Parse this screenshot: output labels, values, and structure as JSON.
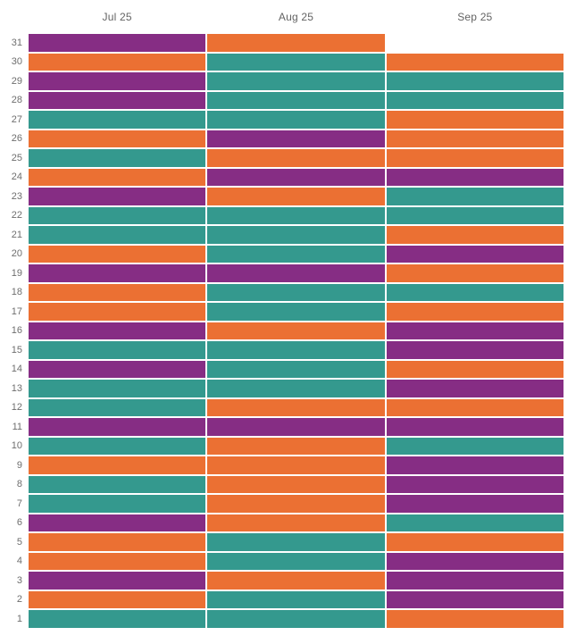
{
  "chart_data": {
    "type": "heatmap",
    "title": "",
    "columns": [
      "Jul 25",
      "Aug 25",
      "Sep 25"
    ],
    "rows": [
      31,
      30,
      29,
      28,
      27,
      26,
      25,
      24,
      23,
      22,
      21,
      20,
      19,
      18,
      17,
      16,
      15,
      14,
      13,
      12,
      11,
      10,
      9,
      8,
      7,
      6,
      5,
      4,
      3,
      2,
      1
    ],
    "cells": [
      [
        "purple",
        "orange",
        null
      ],
      [
        "orange",
        "teal",
        "orange"
      ],
      [
        "purple",
        "teal",
        "teal"
      ],
      [
        "purple",
        "teal",
        "teal"
      ],
      [
        "teal",
        "teal",
        "orange"
      ],
      [
        "orange",
        "purple",
        "orange"
      ],
      [
        "teal",
        "orange",
        "orange"
      ],
      [
        "orange",
        "purple",
        "purple"
      ],
      [
        "purple",
        "orange",
        "teal"
      ],
      [
        "teal",
        "teal",
        "teal"
      ],
      [
        "teal",
        "teal",
        "orange"
      ],
      [
        "orange",
        "teal",
        "purple"
      ],
      [
        "purple",
        "purple",
        "orange"
      ],
      [
        "orange",
        "teal",
        "teal"
      ],
      [
        "orange",
        "teal",
        "orange"
      ],
      [
        "purple",
        "orange",
        "purple"
      ],
      [
        "teal",
        "teal",
        "purple"
      ],
      [
        "purple",
        "teal",
        "orange"
      ],
      [
        "teal",
        "teal",
        "purple"
      ],
      [
        "teal",
        "orange",
        "orange"
      ],
      [
        "purple",
        "purple",
        "purple"
      ],
      [
        "teal",
        "orange",
        "teal"
      ],
      [
        "orange",
        "orange",
        "purple"
      ],
      [
        "teal",
        "orange",
        "purple"
      ],
      [
        "teal",
        "orange",
        "purple"
      ],
      [
        "purple",
        "orange",
        "teal"
      ],
      [
        "orange",
        "teal",
        "orange"
      ],
      [
        "orange",
        "teal",
        "purple"
      ],
      [
        "purple",
        "orange",
        "purple"
      ],
      [
        "orange",
        "teal",
        "purple"
      ],
      [
        "teal",
        "teal",
        "orange"
      ]
    ],
    "palette": {
      "purple": "#862D84",
      "orange": "#EB7033",
      "teal": "#34998E"
    },
    "layout": {
      "legend": "none",
      "grid": "off",
      "background": "#ffffff",
      "header_text_color": "#636363",
      "row_label_text_color": "#6e6e6e"
    }
  }
}
